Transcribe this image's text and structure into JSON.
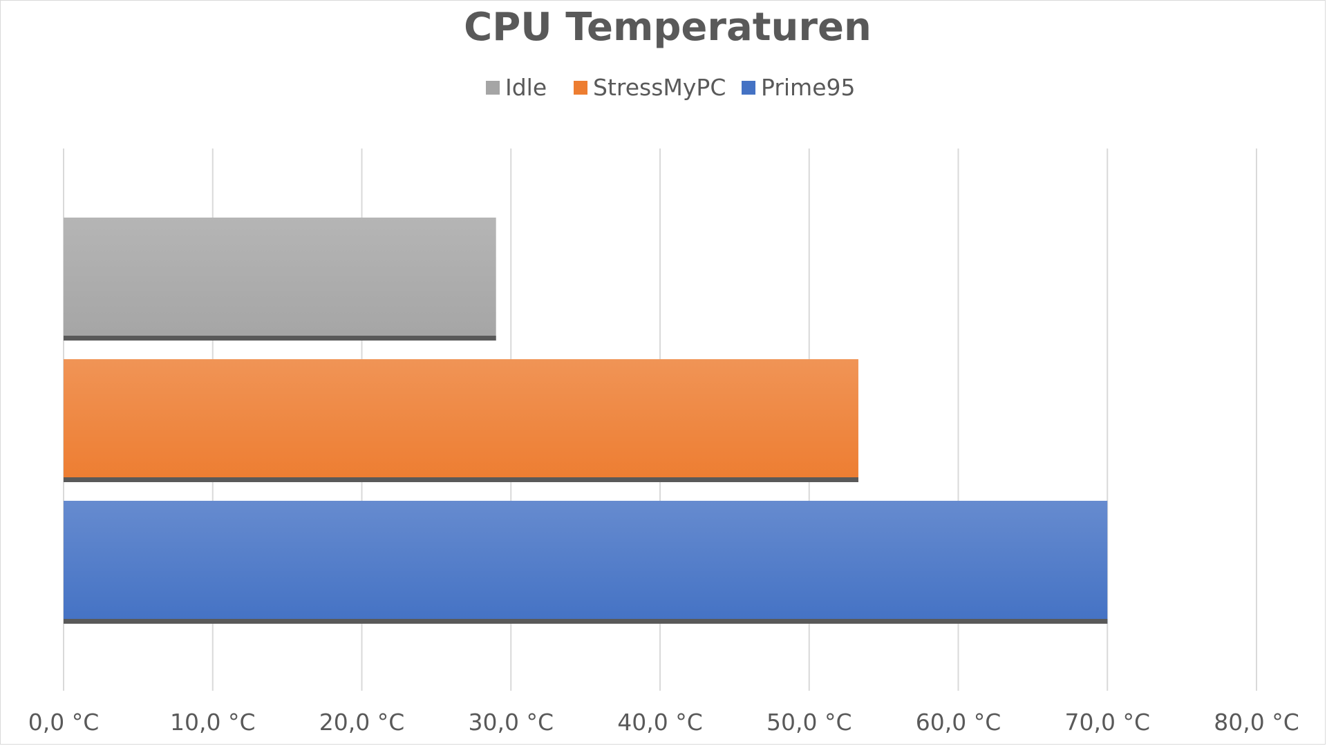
{
  "chart_data": {
    "type": "bar",
    "orientation": "horizontal",
    "title": "CPU Temperaturen",
    "xlabel": "",
    "ylabel": "",
    "xlim": [
      0,
      80
    ],
    "x_ticks": [
      "0,0 °C",
      "10,0 °C",
      "20,0 °C",
      "30,0 °C",
      "40,0 °C",
      "50,0 °C",
      "60,0 °C",
      "70,0 °C",
      "80,0 °C"
    ],
    "grid": "vertical",
    "legend_position": "top",
    "series": [
      {
        "name": "Idle",
        "values": [
          29.0
        ],
        "color": "#a5a5a5"
      },
      {
        "name": "StressMyPC",
        "values": [
          53.3
        ],
        "color": "#ed7d31"
      },
      {
        "name": "Prime95",
        "values": [
          70.0
        ],
        "color": "#4472c4"
      }
    ]
  }
}
